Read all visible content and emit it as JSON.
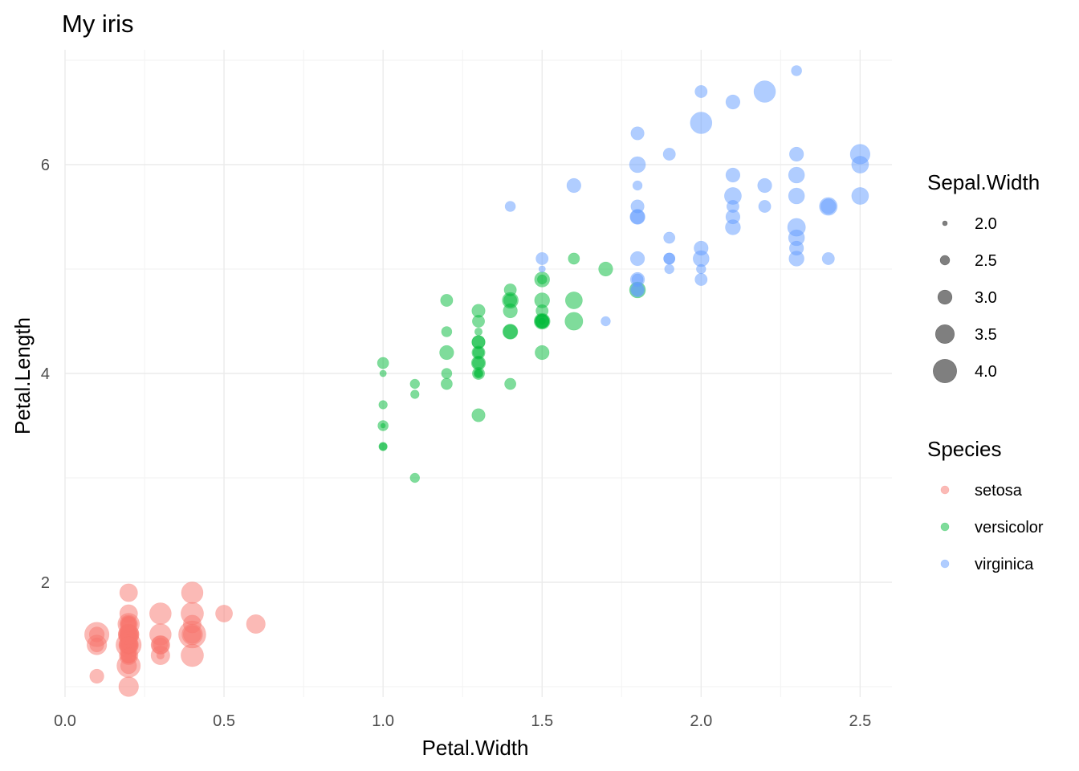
{
  "chart_data": {
    "type": "scatter",
    "title": "My iris",
    "xlabel": "Petal.Width",
    "ylabel": "Petal.Length",
    "xlim": [
      0,
      2.6
    ],
    "ylim": [
      0.9,
      7.1
    ],
    "x_ticks": [
      0.0,
      0.5,
      1.0,
      1.5,
      2.0,
      2.5
    ],
    "x_tick_labels": [
      "0.0",
      "0.5",
      "1.0",
      "1.5",
      "2.0",
      "2.5"
    ],
    "y_ticks": [
      2,
      4,
      6
    ],
    "y_tick_labels": [
      "2",
      "4",
      "6"
    ],
    "grid": true,
    "size_legend": {
      "title": "Sepal.Width",
      "values": [
        2.0,
        2.5,
        3.0,
        3.5,
        4.0
      ],
      "labels": [
        "2.0",
        "2.5",
        "3.0",
        "3.5",
        "4.0"
      ]
    },
    "color_legend": {
      "title": "Species",
      "position": "right"
    },
    "series": [
      {
        "name": "setosa",
        "color": "#F8766D",
        "points": [
          [
            0.2,
            1.4,
            3.5
          ],
          [
            0.2,
            1.4,
            3.0
          ],
          [
            0.2,
            1.3,
            3.2
          ],
          [
            0.2,
            1.5,
            3.1
          ],
          [
            0.2,
            1.4,
            3.6
          ],
          [
            0.4,
            1.7,
            3.9
          ],
          [
            0.3,
            1.4,
            3.4
          ],
          [
            0.2,
            1.5,
            3.4
          ],
          [
            0.2,
            1.4,
            2.9
          ],
          [
            0.1,
            1.5,
            3.1
          ],
          [
            0.2,
            1.5,
            3.7
          ],
          [
            0.2,
            1.6,
            3.4
          ],
          [
            0.1,
            1.4,
            3.0
          ],
          [
            0.1,
            1.1,
            3.0
          ],
          [
            0.2,
            1.2,
            4.0
          ],
          [
            0.4,
            1.5,
            4.4
          ],
          [
            0.4,
            1.3,
            3.9
          ],
          [
            0.3,
            1.4,
            3.5
          ],
          [
            0.3,
            1.7,
            3.8
          ],
          [
            0.3,
            1.5,
            3.8
          ],
          [
            0.2,
            1.7,
            3.4
          ],
          [
            0.4,
            1.5,
            3.7
          ],
          [
            0.2,
            1.0,
            3.6
          ],
          [
            0.5,
            1.7,
            3.3
          ],
          [
            0.2,
            1.9,
            3.4
          ],
          [
            0.2,
            1.6,
            3.0
          ],
          [
            0.4,
            1.6,
            3.4
          ],
          [
            0.2,
            1.5,
            3.5
          ],
          [
            0.2,
            1.4,
            3.4
          ],
          [
            0.2,
            1.6,
            3.2
          ],
          [
            0.2,
            1.6,
            3.1
          ],
          [
            0.4,
            1.5,
            3.4
          ],
          [
            0.1,
            1.5,
            4.1
          ],
          [
            0.2,
            1.4,
            4.2
          ],
          [
            0.2,
            1.5,
            3.1
          ],
          [
            0.2,
            1.2,
            3.2
          ],
          [
            0.2,
            1.3,
            3.5
          ],
          [
            0.1,
            1.4,
            3.6
          ],
          [
            0.2,
            1.3,
            3.0
          ],
          [
            0.2,
            1.5,
            3.4
          ],
          [
            0.3,
            1.3,
            3.5
          ],
          [
            0.3,
            1.3,
            2.3
          ],
          [
            0.2,
            1.3,
            3.2
          ],
          [
            0.6,
            1.6,
            3.5
          ],
          [
            0.4,
            1.9,
            3.8
          ],
          [
            0.3,
            1.4,
            3.0
          ],
          [
            0.2,
            1.6,
            3.8
          ],
          [
            0.2,
            1.4,
            3.2
          ],
          [
            0.2,
            1.5,
            3.7
          ],
          [
            0.2,
            1.4,
            3.3
          ]
        ]
      },
      {
        "name": "versicolor",
        "color": "#00BA38",
        "points": [
          [
            1.4,
            4.7,
            3.2
          ],
          [
            1.5,
            4.5,
            3.2
          ],
          [
            1.5,
            4.9,
            3.1
          ],
          [
            1.3,
            4.0,
            2.3
          ],
          [
            1.5,
            4.6,
            2.8
          ],
          [
            1.3,
            4.5,
            2.8
          ],
          [
            1.6,
            4.7,
            3.3
          ],
          [
            1.0,
            3.3,
            2.4
          ],
          [
            1.3,
            4.6,
            2.9
          ],
          [
            1.4,
            3.9,
            2.7
          ],
          [
            1.0,
            3.5,
            2.0
          ],
          [
            1.5,
            4.2,
            3.0
          ],
          [
            1.0,
            4.0,
            2.2
          ],
          [
            1.4,
            4.7,
            2.9
          ],
          [
            1.3,
            3.6,
            2.9
          ],
          [
            1.4,
            4.4,
            3.1
          ],
          [
            1.5,
            4.5,
            3.0
          ],
          [
            1.0,
            4.1,
            2.7
          ],
          [
            1.5,
            4.5,
            2.2
          ],
          [
            1.1,
            3.9,
            2.5
          ],
          [
            1.8,
            4.8,
            3.2
          ],
          [
            1.3,
            4.0,
            2.8
          ],
          [
            1.5,
            4.9,
            2.5
          ],
          [
            1.2,
            4.7,
            2.8
          ],
          [
            1.3,
            4.3,
            2.9
          ],
          [
            1.4,
            4.4,
            3.0
          ],
          [
            1.4,
            4.8,
            2.8
          ],
          [
            1.7,
            5.0,
            3.0
          ],
          [
            1.5,
            4.5,
            2.9
          ],
          [
            1.0,
            3.5,
            2.6
          ],
          [
            1.1,
            3.8,
            2.4
          ],
          [
            1.0,
            3.7,
            2.4
          ],
          [
            1.2,
            3.9,
            2.7
          ],
          [
            1.6,
            5.1,
            2.7
          ],
          [
            1.5,
            4.5,
            3.0
          ],
          [
            1.6,
            4.5,
            3.4
          ],
          [
            1.5,
            4.7,
            3.1
          ],
          [
            1.3,
            4.4,
            2.3
          ],
          [
            1.3,
            4.1,
            3.0
          ],
          [
            1.3,
            4.0,
            2.5
          ],
          [
            1.2,
            4.4,
            2.6
          ],
          [
            1.4,
            4.6,
            3.0
          ],
          [
            1.2,
            4.0,
            2.6
          ],
          [
            1.0,
            3.3,
            2.3
          ],
          [
            1.3,
            4.2,
            2.7
          ],
          [
            1.2,
            4.2,
            3.0
          ],
          [
            1.3,
            4.2,
            2.9
          ],
          [
            1.3,
            4.3,
            2.9
          ],
          [
            1.1,
            3.0,
            2.5
          ],
          [
            1.3,
            4.1,
            2.8
          ]
        ]
      },
      {
        "name": "virginica",
        "color": "#619CFF",
        "points": [
          [
            2.5,
            6.0,
            3.3
          ],
          [
            1.9,
            5.1,
            2.7
          ],
          [
            2.1,
            5.9,
            3.0
          ],
          [
            1.8,
            5.6,
            2.9
          ],
          [
            2.2,
            5.8,
            3.0
          ],
          [
            2.1,
            6.6,
            3.0
          ],
          [
            1.7,
            4.5,
            2.5
          ],
          [
            1.8,
            6.3,
            2.9
          ],
          [
            1.8,
            5.8,
            2.5
          ],
          [
            2.5,
            6.1,
            3.6
          ],
          [
            2.0,
            5.1,
            3.2
          ],
          [
            1.9,
            5.3,
            2.7
          ],
          [
            2.1,
            5.5,
            3.0
          ],
          [
            2.0,
            5.0,
            2.5
          ],
          [
            2.4,
            5.1,
            2.8
          ],
          [
            2.3,
            5.3,
            3.2
          ],
          [
            1.8,
            5.5,
            3.0
          ],
          [
            2.2,
            6.7,
            3.8
          ],
          [
            2.3,
            6.9,
            2.6
          ],
          [
            1.5,
            5.0,
            2.2
          ],
          [
            2.3,
            5.7,
            3.2
          ],
          [
            2.0,
            4.9,
            2.8
          ],
          [
            2.0,
            6.7,
            2.8
          ],
          [
            1.8,
            4.9,
            2.7
          ],
          [
            2.1,
            5.7,
            3.3
          ],
          [
            1.8,
            6.0,
            3.2
          ],
          [
            1.8,
            4.8,
            2.8
          ],
          [
            1.8,
            4.9,
            3.0
          ],
          [
            2.1,
            5.6,
            2.8
          ],
          [
            1.6,
            5.8,
            3.0
          ],
          [
            1.9,
            6.1,
            2.8
          ],
          [
            2.0,
            6.4,
            3.8
          ],
          [
            2.2,
            5.6,
            2.8
          ],
          [
            1.5,
            5.1,
            2.8
          ],
          [
            1.4,
            5.6,
            2.6
          ],
          [
            2.3,
            6.1,
            3.0
          ],
          [
            2.4,
            5.6,
            3.4
          ],
          [
            1.8,
            5.5,
            3.1
          ],
          [
            1.8,
            4.8,
            3.0
          ],
          [
            2.1,
            5.4,
            3.1
          ],
          [
            2.4,
            5.6,
            3.1
          ],
          [
            2.3,
            5.1,
            3.1
          ],
          [
            1.9,
            5.1,
            2.7
          ],
          [
            2.3,
            5.9,
            3.2
          ],
          [
            2.5,
            5.7,
            3.3
          ],
          [
            2.3,
            5.2,
            3.0
          ],
          [
            1.9,
            5.0,
            2.5
          ],
          [
            2.0,
            5.2,
            3.0
          ],
          [
            2.3,
            5.4,
            3.4
          ],
          [
            1.8,
            5.1,
            3.0
          ]
        ]
      }
    ]
  }
}
